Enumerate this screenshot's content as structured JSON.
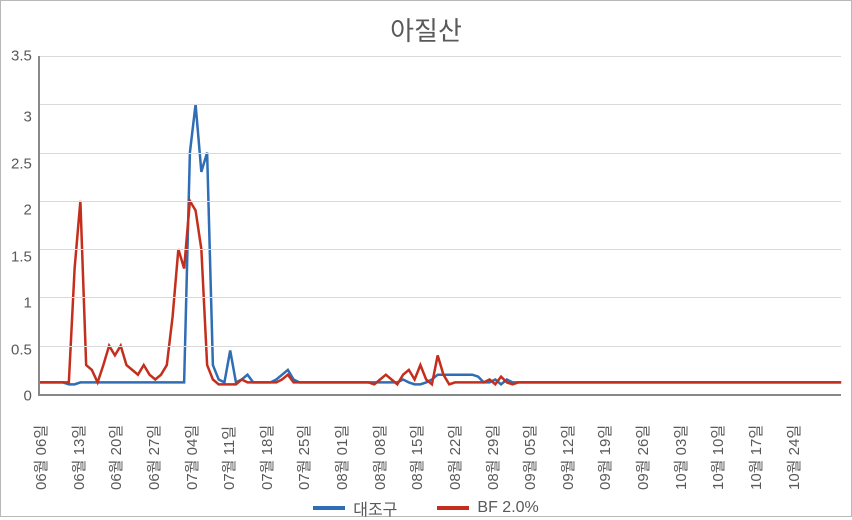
{
  "chart": {
    "type": "line",
    "title": "아질산",
    "title_fontsize": 26,
    "title_color": "#595959",
    "background_color": "#ffffff",
    "border_color": "#b8b8b8",
    "grid_color": "#d9d9d9",
    "axis_color": "#888888",
    "tick_font_color": "#595959",
    "tick_fontsize": 15,
    "ylim": [
      0,
      3.5
    ],
    "ytick_step": 0.5,
    "yticks": [
      "3.5",
      "3",
      "2.5",
      "2",
      "1.5",
      "1",
      "0.5",
      "0"
    ],
    "xticks": [
      "06월 06일",
      "06월 13일",
      "06월 20일",
      "06월 27일",
      "07월 04일",
      "07월 11일",
      "07월 18일",
      "07월 25일",
      "08월 01일",
      "08월 08일",
      "08월 15일",
      "08월 22일",
      "08월 29일",
      "09월 05일",
      "09월 12일",
      "09월 19일",
      "09월 26일",
      "10월 03일",
      "10월 10일",
      "10월 17일",
      "10월 24일"
    ],
    "n_points": 140,
    "series": [
      {
        "name": "대조구",
        "color": "#2f6db5",
        "line_width": 2.5,
        "values": [
          0.12,
          0.12,
          0.12,
          0.12,
          0.12,
          0.1,
          0.1,
          0.12,
          0.12,
          0.12,
          0.12,
          0.12,
          0.12,
          0.12,
          0.12,
          0.12,
          0.12,
          0.12,
          0.12,
          0.12,
          0.12,
          0.12,
          0.12,
          0.12,
          0.12,
          0.12,
          2.5,
          3.0,
          2.3,
          2.5,
          0.3,
          0.15,
          0.12,
          0.45,
          0.12,
          0.15,
          0.2,
          0.12,
          0.12,
          0.12,
          0.12,
          0.15,
          0.2,
          0.25,
          0.15,
          0.12,
          0.12,
          0.12,
          0.12,
          0.12,
          0.12,
          0.12,
          0.12,
          0.12,
          0.12,
          0.12,
          0.12,
          0.12,
          0.12,
          0.12,
          0.12,
          0.12,
          0.12,
          0.15,
          0.12,
          0.1,
          0.1,
          0.12,
          0.15,
          0.2,
          0.2,
          0.2,
          0.2,
          0.2,
          0.2,
          0.2,
          0.18,
          0.12,
          0.12,
          0.15,
          0.1,
          0.15,
          0.12,
          0.12,
          0.12,
          0.12,
          0.12,
          0.12,
          0.12,
          0.12,
          0.12,
          0.12,
          0.12,
          0.12,
          0.12,
          0.12,
          0.12,
          0.12,
          0.12,
          0.12,
          0.12,
          0.12,
          0.12,
          0.12,
          0.12,
          0.12,
          0.12,
          0.12,
          0.12,
          0.12,
          0.12,
          0.12,
          0.12,
          0.12,
          0.12,
          0.12,
          0.12,
          0.12,
          0.12,
          0.12,
          0.12,
          0.12,
          0.12,
          0.12,
          0.12,
          0.12,
          0.12,
          0.12,
          0.12,
          0.12,
          0.12,
          0.12,
          0.12,
          0.12,
          0.12,
          0.12,
          0.12,
          0.12,
          0.12,
          0.12
        ]
      },
      {
        "name": "BF 2.0%",
        "color": "#c42e1c",
        "line_width": 2.5,
        "values": [
          0.12,
          0.12,
          0.12,
          0.12,
          0.12,
          0.12,
          1.3,
          2.0,
          0.3,
          0.25,
          0.12,
          0.3,
          0.5,
          0.4,
          0.5,
          0.3,
          0.25,
          0.2,
          0.3,
          0.2,
          0.15,
          0.2,
          0.3,
          0.8,
          1.5,
          1.3,
          2.0,
          1.9,
          1.5,
          0.3,
          0.15,
          0.1,
          0.1,
          0.1,
          0.1,
          0.15,
          0.12,
          0.12,
          0.12,
          0.12,
          0.12,
          0.12,
          0.15,
          0.2,
          0.12,
          0.12,
          0.12,
          0.12,
          0.12,
          0.12,
          0.12,
          0.12,
          0.12,
          0.12,
          0.12,
          0.12,
          0.12,
          0.12,
          0.1,
          0.15,
          0.2,
          0.15,
          0.1,
          0.2,
          0.25,
          0.15,
          0.3,
          0.15,
          0.1,
          0.4,
          0.2,
          0.1,
          0.12,
          0.12,
          0.12,
          0.12,
          0.12,
          0.12,
          0.15,
          0.1,
          0.18,
          0.12,
          0.1,
          0.12,
          0.12,
          0.12,
          0.12,
          0.12,
          0.12,
          0.12,
          0.12,
          0.12,
          0.12,
          0.12,
          0.12,
          0.12,
          0.12,
          0.12,
          0.12,
          0.12,
          0.12,
          0.12,
          0.12,
          0.12,
          0.12,
          0.12,
          0.12,
          0.12,
          0.12,
          0.12,
          0.12,
          0.12,
          0.12,
          0.12,
          0.12,
          0.12,
          0.12,
          0.12,
          0.12,
          0.12,
          0.12,
          0.12,
          0.12,
          0.12,
          0.12,
          0.12,
          0.12,
          0.12,
          0.12,
          0.12,
          0.12,
          0.12,
          0.12,
          0.12,
          0.12,
          0.12,
          0.12,
          0.12,
          0.12,
          0.12
        ]
      }
    ],
    "legend": {
      "position": "bottom",
      "items": [
        {
          "label": "대조구",
          "color": "#2f6db5"
        },
        {
          "label": "BF 2.0%",
          "color": "#c42e1c"
        }
      ]
    }
  }
}
